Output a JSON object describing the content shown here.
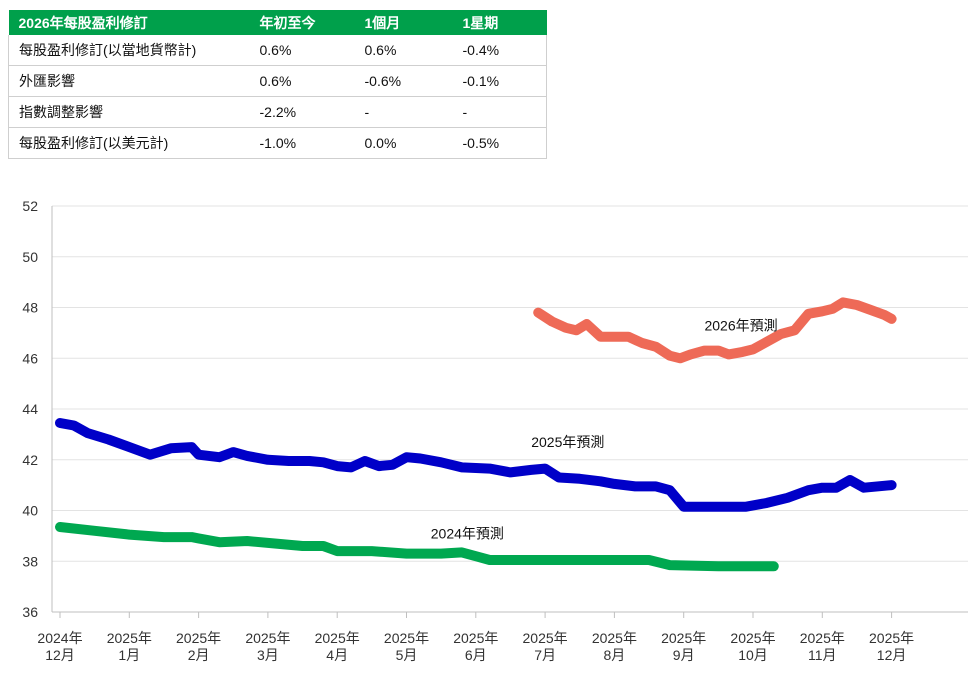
{
  "table": {
    "headers": [
      "2026年每股盈利修訂",
      "年初至今",
      "1個月",
      "1星期"
    ],
    "rows": [
      [
        "每股盈利修訂(以當地貨幣計)",
        "0.6%",
        "0.6%",
        "-0.4%"
      ],
      [
        "外匯影響",
        "0.6%",
        "-0.6%",
        "-0.1%"
      ],
      [
        "指數調整影響",
        "-2.2%",
        "-",
        "-"
      ],
      [
        "每股盈利修訂(以美元計)",
        "-1.0%",
        "0.0%",
        "-0.5%"
      ]
    ]
  },
  "chart_data": {
    "type": "line",
    "ylim": [
      36,
      52
    ],
    "yticks": [
      36,
      38,
      40,
      42,
      44,
      46,
      48,
      50,
      52
    ],
    "xlim": [
      0,
      13
    ],
    "xticks": [
      {
        "t": 0,
        "line1": "2024年",
        "line2": "12月"
      },
      {
        "t": 1,
        "line1": "2025年",
        "line2": "1月"
      },
      {
        "t": 2,
        "line1": "2025年",
        "line2": "2月"
      },
      {
        "t": 3,
        "line1": "2025年",
        "line2": "3月"
      },
      {
        "t": 4,
        "line1": "2025年",
        "line2": "4月"
      },
      {
        "t": 5,
        "line1": "2025年",
        "line2": "5月"
      },
      {
        "t": 6,
        "line1": "2025年",
        "line2": "6月"
      },
      {
        "t": 7,
        "line1": "2025年",
        "line2": "7月"
      },
      {
        "t": 8,
        "line1": "2025年",
        "line2": "8月"
      },
      {
        "t": 9,
        "line1": "2025年",
        "line2": "9月"
      },
      {
        "t": 10,
        "line1": "2025年",
        "line2": "10月"
      },
      {
        "t": 11,
        "line1": "2025年",
        "line2": "11月"
      },
      {
        "t": 12,
        "line1": "2025年",
        "line2": "12月"
      }
    ],
    "grid": "horizontal",
    "series": [
      {
        "name": "2026年預測",
        "color": "#ee6a57",
        "label_at": [
          9.3,
          47.3
        ],
        "points": [
          [
            6.9,
            47.8
          ],
          [
            7.1,
            47.45
          ],
          [
            7.3,
            47.2
          ],
          [
            7.45,
            47.1
          ],
          [
            7.6,
            47.35
          ],
          [
            7.8,
            46.85
          ],
          [
            8.0,
            46.85
          ],
          [
            8.2,
            46.85
          ],
          [
            8.4,
            46.6
          ],
          [
            8.6,
            46.45
          ],
          [
            8.8,
            46.1
          ],
          [
            8.95,
            46.0
          ],
          [
            9.1,
            46.15
          ],
          [
            9.3,
            46.3
          ],
          [
            9.5,
            46.3
          ],
          [
            9.65,
            46.15
          ],
          [
            9.85,
            46.25
          ],
          [
            10.0,
            46.35
          ],
          [
            10.2,
            46.65
          ],
          [
            10.4,
            46.95
          ],
          [
            10.6,
            47.1
          ],
          [
            10.8,
            47.75
          ],
          [
            11.0,
            47.85
          ],
          [
            11.15,
            47.95
          ],
          [
            11.3,
            48.2
          ],
          [
            11.5,
            48.1
          ],
          [
            11.7,
            47.9
          ],
          [
            11.9,
            47.7
          ],
          [
            12.0,
            47.55
          ]
        ]
      },
      {
        "name": "2025年預測",
        "color": "#0000c8",
        "label_at": [
          6.8,
          42.7
        ],
        "points": [
          [
            0.0,
            43.45
          ],
          [
            0.2,
            43.35
          ],
          [
            0.4,
            43.05
          ],
          [
            0.7,
            42.8
          ],
          [
            1.0,
            42.5
          ],
          [
            1.3,
            42.2
          ],
          [
            1.6,
            42.45
          ],
          [
            1.9,
            42.5
          ],
          [
            2.0,
            42.2
          ],
          [
            2.3,
            42.1
          ],
          [
            2.5,
            42.3
          ],
          [
            2.7,
            42.15
          ],
          [
            3.0,
            42.0
          ],
          [
            3.3,
            41.95
          ],
          [
            3.6,
            41.95
          ],
          [
            3.8,
            41.9
          ],
          [
            4.0,
            41.75
          ],
          [
            4.2,
            41.7
          ],
          [
            4.4,
            41.95
          ],
          [
            4.6,
            41.75
          ],
          [
            4.8,
            41.8
          ],
          [
            5.0,
            42.1
          ],
          [
            5.2,
            42.05
          ],
          [
            5.5,
            41.9
          ],
          [
            5.8,
            41.7
          ],
          [
            6.2,
            41.65
          ],
          [
            6.5,
            41.5
          ],
          [
            6.8,
            41.6
          ],
          [
            7.0,
            41.65
          ],
          [
            7.2,
            41.3
          ],
          [
            7.5,
            41.25
          ],
          [
            7.8,
            41.15
          ],
          [
            8.0,
            41.05
          ],
          [
            8.3,
            40.95
          ],
          [
            8.6,
            40.95
          ],
          [
            8.8,
            40.8
          ],
          [
            9.0,
            40.15
          ],
          [
            9.3,
            40.15
          ],
          [
            9.6,
            40.15
          ],
          [
            9.9,
            40.15
          ],
          [
            10.2,
            40.3
          ],
          [
            10.5,
            40.5
          ],
          [
            10.8,
            40.8
          ],
          [
            11.0,
            40.9
          ],
          [
            11.2,
            40.9
          ],
          [
            11.4,
            41.2
          ],
          [
            11.6,
            40.9
          ],
          [
            12.0,
            41.0
          ]
        ]
      },
      {
        "name": "2024年預測",
        "color": "#00a850",
        "label_at": [
          5.35,
          39.1
        ],
        "points": [
          [
            0.0,
            39.35
          ],
          [
            0.5,
            39.2
          ],
          [
            1.0,
            39.05
          ],
          [
            1.5,
            38.95
          ],
          [
            1.9,
            38.95
          ],
          [
            2.0,
            38.9
          ],
          [
            2.3,
            38.75
          ],
          [
            2.7,
            38.8
          ],
          [
            3.1,
            38.7
          ],
          [
            3.5,
            38.6
          ],
          [
            3.8,
            38.6
          ],
          [
            4.0,
            38.4
          ],
          [
            4.5,
            38.4
          ],
          [
            5.0,
            38.3
          ],
          [
            5.5,
            38.3
          ],
          [
            5.8,
            38.35
          ],
          [
            6.0,
            38.2
          ],
          [
            6.2,
            38.05
          ],
          [
            7.0,
            38.05
          ],
          [
            8.0,
            38.05
          ],
          [
            8.5,
            38.05
          ],
          [
            8.8,
            37.85
          ],
          [
            9.5,
            37.8
          ],
          [
            10.3,
            37.8
          ]
        ]
      }
    ]
  }
}
